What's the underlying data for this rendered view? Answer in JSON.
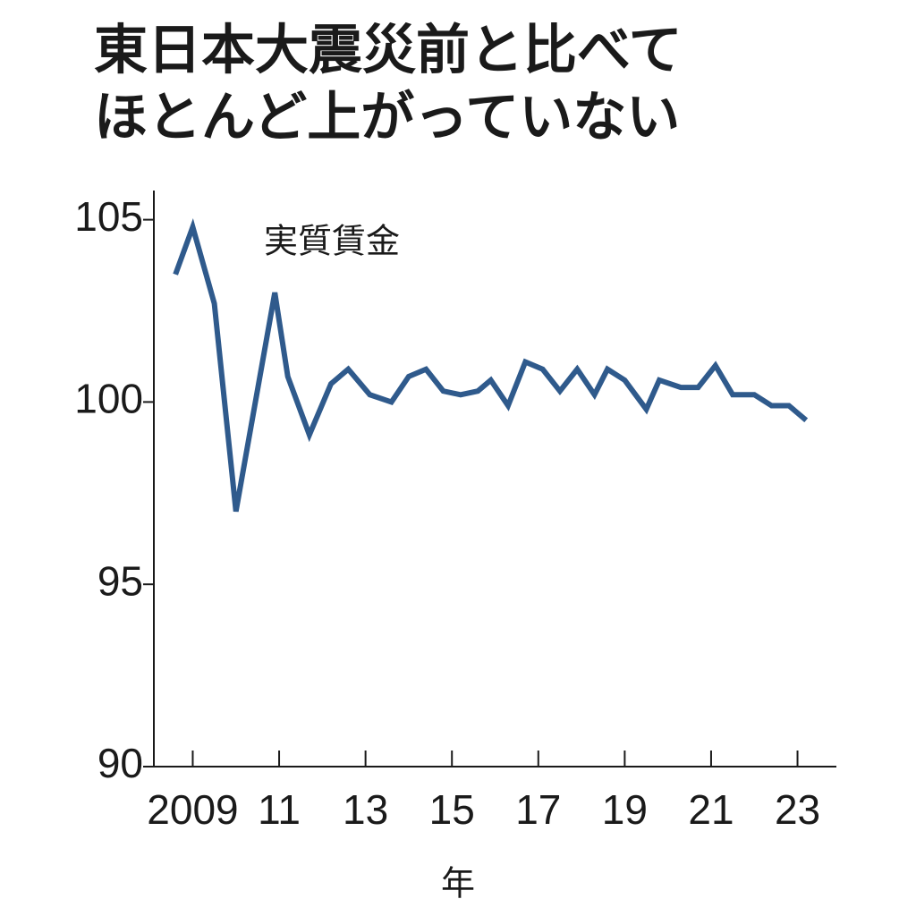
{
  "chart_data": {
    "type": "line",
    "title": [
      "東日本大震災前と比べて",
      "ほとんど上がっていない"
    ],
    "annotation": "実質賃金",
    "x_label": "年",
    "x": [
      2008.6,
      2009.0,
      2009.5,
      2010.0,
      2010.9,
      2011.2,
      2011.7,
      2012.2,
      2012.6,
      2013.1,
      2013.6,
      2014.0,
      2014.4,
      2014.8,
      2015.2,
      2015.6,
      2015.9,
      2016.3,
      2016.7,
      2017.1,
      2017.5,
      2017.9,
      2018.3,
      2018.6,
      2019.0,
      2019.5,
      2019.8,
      2020.3,
      2020.7,
      2021.1,
      2021.5,
      2022.0,
      2022.4,
      2022.8,
      2023.2
    ],
    "series": [
      {
        "color": "#2f5a8c",
        "values": [
          103.5,
          104.8,
          102.7,
          97.0,
          103.0,
          100.7,
          99.1,
          100.5,
          100.9,
          100.2,
          100.0,
          100.7,
          100.9,
          100.3,
          100.2,
          100.3,
          100.6,
          99.9,
          101.1,
          100.9,
          100.3,
          100.9,
          100.2,
          100.9,
          100.6,
          99.8,
          100.6,
          100.4,
          100.4,
          101.0,
          100.2,
          100.2,
          99.9,
          99.9,
          99.5
        ]
      }
    ],
    "xlim": [
      2008.1,
      2023.9
    ],
    "ylim": [
      90,
      105.8
    ],
    "xticks": [
      2009,
      {
        "value": 2011,
        "label": "11"
      },
      {
        "value": 2013,
        "label": "13"
      },
      {
        "value": 2015,
        "label": "15"
      },
      {
        "value": 2017,
        "label": "17"
      },
      {
        "value": 2019,
        "label": "19"
      },
      {
        "value": 2021,
        "label": "21"
      },
      {
        "value": 2023,
        "label": "23"
      }
    ],
    "yticks": [
      90,
      95,
      100,
      105
    ]
  }
}
